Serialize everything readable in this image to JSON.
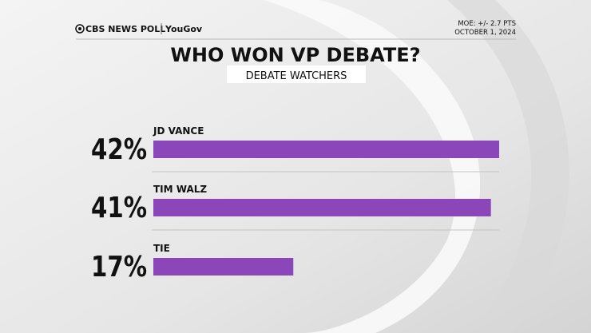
{
  "chart_data": {
    "type": "bar",
    "orientation": "horizontal",
    "title": "WHO WON VP DEBATE?",
    "subtitle": "DEBATE WATCHERS",
    "brand": [
      "CBS NEWS POLL",
      "YouGov"
    ],
    "notes": [
      "MOE: +/- 2.7 PTS",
      "OCTOBER 1, 2024"
    ],
    "categories": [
      "JD VANCE",
      "TIM WALZ",
      "TIE"
    ],
    "values": [
      42,
      41,
      17
    ],
    "value_labels": [
      "42%",
      "41%",
      "17%"
    ],
    "color": "#8b47b9"
  }
}
